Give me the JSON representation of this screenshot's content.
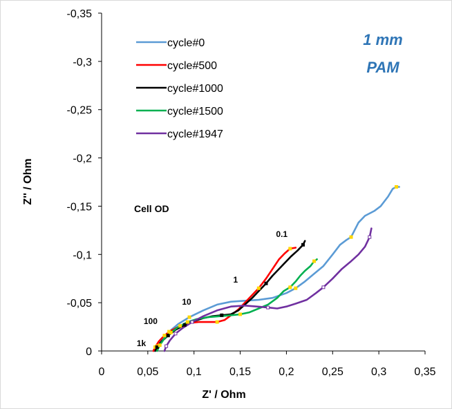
{
  "chart_data": {
    "type": "line",
    "title": "",
    "xlabel": "Z' / Ohm",
    "ylabel": "Z'' / Ohm",
    "xlim": [
      0,
      0.35
    ],
    "ylim": [
      0,
      -0.35
    ],
    "x_ticks": [
      "0",
      "0,05",
      "0,1",
      "0,15",
      "0,2",
      "0,25",
      "0,3",
      "0,35"
    ],
    "y_ticks": [
      "0",
      "-0,05",
      "-0,1",
      "-0,15",
      "-0,2",
      "-0,25",
      "-0,3",
      "-0,35"
    ],
    "legend_position": "top-left",
    "annotations": {
      "cell": "Cell OD",
      "corner_line1": "1 mm",
      "corner_line2": "PAM",
      "corner_color": "#2E75B6",
      "freq_labels": [
        {
          "text": "1k",
          "x": 0.043,
          "y": -0.005
        },
        {
          "text": "100",
          "x": 0.053,
          "y": -0.028
        },
        {
          "text": "10",
          "x": 0.092,
          "y": -0.048
        },
        {
          "text": "1",
          "x": 0.145,
          "y": -0.071
        },
        {
          "text": "0.1",
          "x": 0.195,
          "y": -0.118
        }
      ]
    },
    "series": [
      {
        "name": "cycle#0",
        "color": "#5B9BD5",
        "points": [
          [
            0.057,
            0.0
          ],
          [
            0.06,
            -0.005
          ],
          [
            0.065,
            -0.012
          ],
          [
            0.073,
            -0.02
          ],
          [
            0.083,
            -0.028
          ],
          [
            0.095,
            -0.035
          ],
          [
            0.11,
            -0.042
          ],
          [
            0.125,
            -0.048
          ],
          [
            0.14,
            -0.051
          ],
          [
            0.155,
            -0.052
          ],
          [
            0.17,
            -0.053
          ],
          [
            0.185,
            -0.055
          ],
          [
            0.2,
            -0.06
          ],
          [
            0.21,
            -0.065
          ],
          [
            0.22,
            -0.072
          ],
          [
            0.23,
            -0.08
          ],
          [
            0.24,
            -0.088
          ],
          [
            0.25,
            -0.1
          ],
          [
            0.258,
            -0.11
          ],
          [
            0.265,
            -0.115
          ],
          [
            0.27,
            -0.118
          ],
          [
            0.278,
            -0.133
          ],
          [
            0.285,
            -0.14
          ],
          [
            0.295,
            -0.145
          ],
          [
            0.302,
            -0.15
          ],
          [
            0.31,
            -0.16
          ],
          [
            0.315,
            -0.168
          ],
          [
            0.319,
            -0.17
          ],
          [
            0.322,
            -0.17
          ]
        ]
      },
      {
        "name": "cycle#500",
        "color": "#FF0000",
        "points": [
          [
            0.056,
            0.0
          ],
          [
            0.058,
            -0.004
          ],
          [
            0.062,
            -0.01
          ],
          [
            0.068,
            -0.016
          ],
          [
            0.075,
            -0.021
          ],
          [
            0.085,
            -0.026
          ],
          [
            0.095,
            -0.029
          ],
          [
            0.105,
            -0.03
          ],
          [
            0.115,
            -0.03
          ],
          [
            0.125,
            -0.03
          ],
          [
            0.133,
            -0.032
          ],
          [
            0.14,
            -0.037
          ],
          [
            0.148,
            -0.043
          ],
          [
            0.155,
            -0.05
          ],
          [
            0.162,
            -0.057
          ],
          [
            0.17,
            -0.065
          ],
          [
            0.178,
            -0.075
          ],
          [
            0.185,
            -0.085
          ],
          [
            0.192,
            -0.095
          ],
          [
            0.198,
            -0.101
          ],
          [
            0.204,
            -0.106
          ],
          [
            0.21,
            -0.107
          ]
        ]
      },
      {
        "name": "cycle#1000",
        "color": "#000000",
        "points": [
          [
            0.058,
            0.0
          ],
          [
            0.06,
            -0.004
          ],
          [
            0.065,
            -0.01
          ],
          [
            0.072,
            -0.016
          ],
          [
            0.08,
            -0.022
          ],
          [
            0.09,
            -0.027
          ],
          [
            0.1,
            -0.031
          ],
          [
            0.11,
            -0.034
          ],
          [
            0.12,
            -0.036
          ],
          [
            0.13,
            -0.037
          ],
          [
            0.14,
            -0.038
          ],
          [
            0.148,
            -0.042
          ],
          [
            0.155,
            -0.048
          ],
          [
            0.163,
            -0.055
          ],
          [
            0.17,
            -0.062
          ],
          [
            0.178,
            -0.07
          ],
          [
            0.185,
            -0.078
          ],
          [
            0.195,
            -0.088
          ],
          [
            0.205,
            -0.098
          ],
          [
            0.212,
            -0.104
          ],
          [
            0.218,
            -0.11
          ],
          [
            0.22,
            -0.114
          ]
        ]
      },
      {
        "name": "cycle#1500",
        "color": "#00B050",
        "points": [
          [
            0.06,
            0.0
          ],
          [
            0.063,
            -0.006
          ],
          [
            0.068,
            -0.013
          ],
          [
            0.075,
            -0.019
          ],
          [
            0.083,
            -0.025
          ],
          [
            0.093,
            -0.03
          ],
          [
            0.103,
            -0.033
          ],
          [
            0.115,
            -0.035
          ],
          [
            0.128,
            -0.036
          ],
          [
            0.14,
            -0.037
          ],
          [
            0.15,
            -0.038
          ],
          [
            0.16,
            -0.04
          ],
          [
            0.17,
            -0.044
          ],
          [
            0.18,
            -0.048
          ],
          [
            0.19,
            -0.055
          ],
          [
            0.197,
            -0.062
          ],
          [
            0.204,
            -0.066
          ],
          [
            0.21,
            -0.072
          ],
          [
            0.215,
            -0.078
          ],
          [
            0.22,
            -0.083
          ],
          [
            0.226,
            -0.088
          ],
          [
            0.23,
            -0.093
          ],
          [
            0.233,
            -0.095
          ]
        ]
      },
      {
        "name": "cycle#1947",
        "color": "#7030A0",
        "points": [
          [
            0.068,
            0.0
          ],
          [
            0.07,
            -0.005
          ],
          [
            0.074,
            -0.011
          ],
          [
            0.08,
            -0.018
          ],
          [
            0.088,
            -0.024
          ],
          [
            0.098,
            -0.03
          ],
          [
            0.11,
            -0.036
          ],
          [
            0.125,
            -0.042
          ],
          [
            0.14,
            -0.046
          ],
          [
            0.155,
            -0.047
          ],
          [
            0.168,
            -0.046
          ],
          [
            0.18,
            -0.045
          ],
          [
            0.19,
            -0.044
          ],
          [
            0.2,
            -0.046
          ],
          [
            0.21,
            -0.049
          ],
          [
            0.222,
            -0.053
          ],
          [
            0.232,
            -0.06
          ],
          [
            0.24,
            -0.066
          ],
          [
            0.25,
            -0.075
          ],
          [
            0.26,
            -0.085
          ],
          [
            0.27,
            -0.093
          ],
          [
            0.278,
            -0.1
          ],
          [
            0.285,
            -0.108
          ],
          [
            0.29,
            -0.118
          ],
          [
            0.292,
            -0.127
          ]
        ]
      }
    ]
  }
}
